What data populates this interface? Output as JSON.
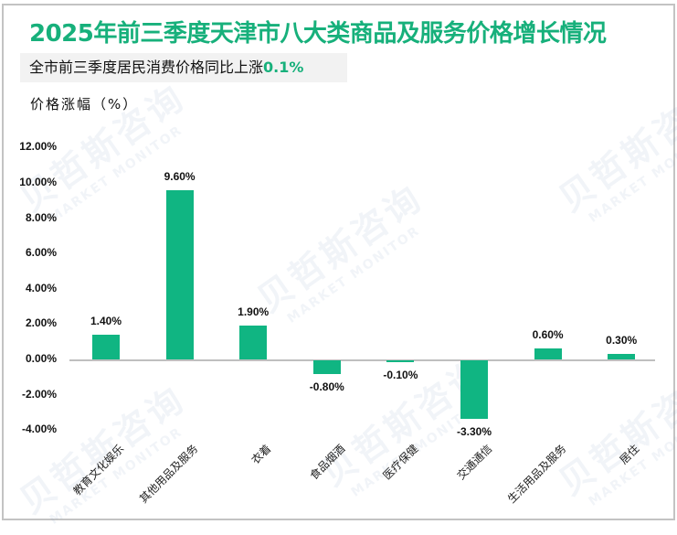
{
  "header": {
    "title": "2025年前三季度天津市八大类商品及服务价格增长情况",
    "subtitle_prefix": "全市前三季度居民消费价格同比上涨",
    "subtitle_value": "0.1%",
    "y_unit": "价格涨幅（%）"
  },
  "watermark": {
    "cn": "贝哲斯咨询",
    "en": "MARKET MONITOR"
  },
  "colors": {
    "bar": "#10b582",
    "title": "#17b07b",
    "axis": "#bfbfbf"
  },
  "chart_data": {
    "type": "bar",
    "title": "2025年前三季度天津市八大类商品及服务价格增长情况",
    "subtitle": "全市前三季度居民消费价格同比上涨0.1%",
    "xlabel": "",
    "ylabel": "价格涨幅（%）",
    "ylim": [
      -4,
      12
    ],
    "yticks": [
      "12.00%",
      "10.00%",
      "8.00%",
      "6.00%",
      "4.00%",
      "2.00%",
      "0.00%",
      "-2.00%",
      "-4.00%"
    ],
    "categories": [
      "教育文化娱乐",
      "其他用品及服务",
      "衣着",
      "食品烟酒",
      "医疗保健",
      "交通通信",
      "生活用品及服务",
      "居住"
    ],
    "values": [
      1.4,
      9.6,
      1.9,
      -0.8,
      -0.1,
      -3.3,
      0.6,
      0.3
    ],
    "data_labels": [
      "1.40%",
      "9.60%",
      "1.90%",
      "-0.80%",
      "-0.10%",
      "-3.30%",
      "0.60%",
      "0.30%"
    ],
    "grid": false,
    "legend": "none"
  }
}
